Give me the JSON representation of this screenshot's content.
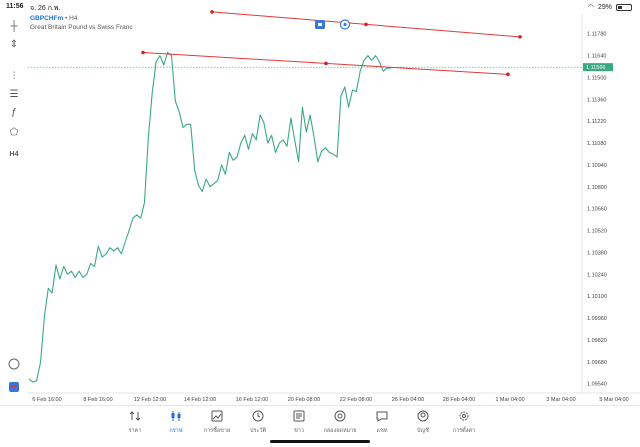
{
  "status": {
    "time": "11:56",
    "date": "จ. 26 ก.พ.",
    "battery": "29%",
    "battery_level": 0.29
  },
  "symbol": {
    "name": "GBPCHFm",
    "timeframe": "H4",
    "description": "Great Britain Pound vs Swiss Franc"
  },
  "toolbar": {
    "items": [
      {
        "name": "crosshair-icon",
        "glyph": "┼"
      },
      {
        "name": "objects-icon",
        "glyph": "⇕"
      },
      {
        "name": "indicators-icon",
        "glyph": "⫶"
      },
      {
        "name": "settings-sliders-icon",
        "glyph": "☰"
      },
      {
        "name": "function-icon",
        "glyph": "ƒ"
      },
      {
        "name": "shapes-icon",
        "glyph": "⬠"
      },
      {
        "name": "timeframe-button",
        "glyph": "H4"
      }
    ]
  },
  "chart_data": {
    "type": "line",
    "color": "#3aa882",
    "y_ticks": [
      "1.11780",
      "1.11640",
      "1.11500",
      "1.11360",
      "1.11220",
      "1.11080",
      "1.10940",
      "1.10800",
      "1.10660",
      "1.10520",
      "1.10380",
      "1.10240",
      "1.10100",
      "1.09960",
      "1.09820",
      "1.09680",
      "1.09540"
    ],
    "x_ticks": [
      "6 Feb 16:00",
      "8 Feb 16:00",
      "12 Feb 12:00",
      "14 Feb 12:00",
      "16 Feb 12:00",
      "20 Feb 08:00",
      "22 Feb 08:00",
      "26 Feb 04:00",
      "28 Feb 04:00",
      "1 Mar 04:00",
      "3 Mar 04:00",
      "5 Mar 04:00"
    ],
    "ylim": [
      1.0948,
      1.119
    ],
    "current_price": "1.11566",
    "current_price_value": 1.11566,
    "series": [
      {
        "values": [
          1.0957,
          1.0955,
          1.0956,
          1.0968,
          1.0997,
          1.1015,
          1.1012,
          1.103,
          1.1021,
          1.1029,
          1.1024,
          1.1026,
          1.1022,
          1.1026,
          1.1022,
          1.1024,
          1.1031,
          1.1029,
          1.1042,
          1.1035,
          1.1037,
          1.1041,
          1.1039,
          1.1041,
          1.1037,
          1.1045,
          1.1052,
          1.106,
          1.1062,
          1.106,
          1.107,
          1.1112,
          1.114,
          1.116,
          1.1164,
          1.1158,
          1.1166,
          1.1164,
          1.1135,
          1.1128,
          1.1118,
          1.112,
          1.112,
          1.1091,
          1.1081,
          1.1077,
          1.1085,
          1.108,
          1.1082,
          1.1084,
          1.1094,
          1.1088,
          1.1102,
          1.1097,
          1.1099,
          1.1108,
          1.1113,
          1.1104,
          1.1114,
          1.111,
          1.1126,
          1.1121,
          1.1108,
          1.1113,
          1.1102,
          1.1108,
          1.111,
          1.1106,
          1.1124,
          1.111,
          1.1096,
          1.1131,
          1.1115,
          1.1126,
          1.1112,
          1.1096,
          1.1103,
          1.1105,
          1.1102,
          1.1101,
          1.1099,
          1.1138,
          1.1144,
          1.1131,
          1.1142,
          1.1141,
          1.1154,
          1.1161,
          1.1164,
          1.1161,
          1.1164,
          1.116,
          1.1154,
          1.1156,
          1.1156
        ]
      }
    ],
    "trendlines": [
      {
        "from": [
          "14 Feb 12:00",
          1.1192
        ],
        "to": [
          "1 Mar 04:00",
          1.1176
        ]
      },
      {
        "from": [
          "12 Feb 12:00",
          1.1166
        ],
        "to": [
          "1 Mar 04:00",
          1.1152
        ]
      }
    ]
  },
  "nav": {
    "items": [
      {
        "label": "ราคา",
        "icon": "quotes-icon"
      },
      {
        "label": "กราฟ",
        "icon": "chart-icon",
        "active": true
      },
      {
        "label": "การซื้อขาย",
        "icon": "trade-icon"
      },
      {
        "label": "ประวัติ",
        "icon": "history-icon"
      },
      {
        "label": "ข่าว",
        "icon": "news-icon"
      },
      {
        "label": "กล่องจดหมาย",
        "icon": "mailbox-icon"
      },
      {
        "label": "แชท",
        "icon": "chat-icon"
      },
      {
        "label": "บัญชี",
        "icon": "account-icon"
      },
      {
        "label": "การตั้งค่า",
        "icon": "settings-icon"
      }
    ]
  }
}
